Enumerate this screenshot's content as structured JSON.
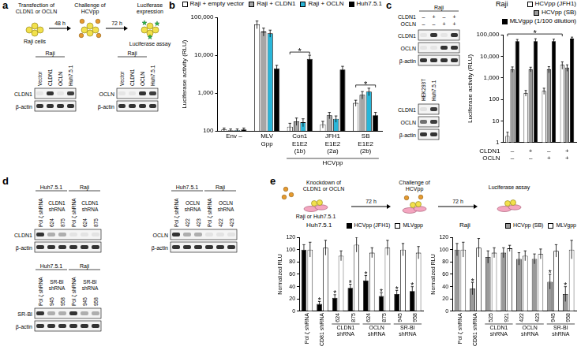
{
  "panel_letters": [
    "a",
    "b",
    "c",
    "d",
    "e"
  ],
  "scheme_a": {
    "transfection": "Transfection of CLDN1 or OCLN",
    "cells": "Raji cells",
    "time_1": "48 h",
    "challenge": "Challenge of HCVpp",
    "time_2": "72 h",
    "expression": "Luciferase expression",
    "assay": "Luciferase assay"
  },
  "blots_a": [
    {
      "header": "Raji",
      "lanes": [
        "Vector",
        "CLDN1",
        "OCLN",
        "Huh7.5.1"
      ],
      "rows": [
        "CLDN1",
        "β-actin"
      ]
    },
    {
      "header": "Raji",
      "lanes": [
        "Vector",
        "CLDN1",
        "OCLN",
        "Huh7.5.1"
      ],
      "rows": [
        "OCLN",
        "β-actin"
      ]
    }
  ],
  "blots_c": [
    {
      "header": "Raji",
      "conditions": [
        {
          "label": "CLDN1",
          "marks": [
            "–",
            "+",
            "–",
            "+"
          ]
        },
        {
          "label": "OCLN",
          "marks": [
            "–",
            "–",
            "+",
            "+"
          ]
        }
      ],
      "rows": [
        "CLDN1",
        "OCLN",
        "β-actin"
      ]
    },
    {
      "lanes": [
        "HEK293T",
        "Huh7.5.1"
      ],
      "rows": [
        "CLDN1",
        "OCLN",
        "β-actin"
      ]
    }
  ],
  "blots_d": [
    {
      "groups": [
        {
          "header": "Huh7.5.1",
          "control": "Pol ζ shRNA",
          "knockdown": "CLDN1 shRNA",
          "clones": [
            "624",
            "875"
          ]
        },
        {
          "header": "Raji",
          "control": "Pol ζ shRNA",
          "knockdown": "CLDN1 shRNA",
          "clones": [
            "624",
            "875"
          ]
        }
      ],
      "rows": [
        "CLDN1",
        "β-actin"
      ]
    },
    {
      "groups": [
        {
          "header": "Huh7.5.1",
          "control": "Pol ζ shRNA",
          "knockdown": "OCLN shRNA",
          "clones": [
            "422",
            "423"
          ]
        },
        {
          "header": "Raji",
          "control": "Pol ζ shRNA",
          "knockdown": "OCLN shRNA",
          "clones": [
            "422",
            "423"
          ]
        }
      ],
      "rows": [
        "OCLN",
        "β-actin"
      ]
    },
    {
      "groups": [
        {
          "header": "Huh7.5.1",
          "control": "Pol ζ shRNA",
          "knockdown": "SR-BI shRNA",
          "clones": [
            "945",
            "958"
          ]
        },
        {
          "header": "Raji",
          "control": "Pol ζ shRNA",
          "knockdown": "SR-BI shRNA",
          "clones": [
            "945",
            "958"
          ]
        }
      ],
      "rows": [
        "SR-BI",
        "β-actin"
      ]
    }
  ],
  "scheme_e": {
    "knockdown": "Knockdown of CLDN1 or OCLN",
    "cells": "Raji or Huh7.5.1",
    "time_1": "72 h",
    "challenge": "Challenge of HCVpp",
    "time_2": "72 h",
    "assay": "Luciferase assay"
  },
  "c_condition_rows": [
    "CLDN1",
    "OCLN"
  ],
  "chart_data": [
    {
      "type": "bar",
      "y_label": "Luciferase activity (RLU)",
      "categories": [
        "Env –",
        "MLV Gpp",
        "Con1 E1E2 (1b)",
        "JFH1 E1E2 (2a)",
        "SB E1E2 (2b)"
      ],
      "category_groups": [
        {
          "label": "HCVpp",
          "first": 2,
          "last": 4
        }
      ],
      "series": [
        {
          "name": "Raji + empty vector",
          "color": "#ffffff",
          "values": [
            110,
            65000,
            130,
            150,
            550
          ],
          "errors": [
            10,
            15000,
            30,
            30,
            100
          ]
        },
        {
          "name": "Raji + CLDN1",
          "color": "#a6a6a6",
          "values": [
            105,
            42000,
            180,
            260,
            900
          ],
          "errors": [
            8,
            10000,
            40,
            50,
            200
          ]
        },
        {
          "name": "Raji + OCLN",
          "color": "#29b6d9",
          "values": [
            105,
            38000,
            170,
            210,
            1100
          ],
          "errors": [
            8,
            8000,
            40,
            40,
            250
          ]
        },
        {
          "name": "Huh7.5.1",
          "color": "#000000",
          "values": [
            110,
            4500,
            8000,
            4200,
            260
          ],
          "errors": [
            10,
            900,
            2000,
            900,
            50
          ]
        }
      ],
      "log": "y",
      "ylim": [
        100,
        100000
      ],
      "yticks": [
        100,
        {
          "value": 1000,
          "label": "1,000"
        },
        {
          "value": 10000,
          "label": "10,000"
        },
        {
          "value": 100000,
          "label": "100,000"
        }
      ],
      "grid": false,
      "legend": "top",
      "annotations": [
        {
          "text": "*",
          "from": 2,
          "to": 2
        },
        {
          "text": "*",
          "from": 4,
          "to": 4
        }
      ]
    },
    {
      "type": "bar",
      "title": "Raji",
      "y_label": "Luciferase activity (RLU)",
      "categories": [
        "– –",
        "+ –",
        "– +",
        "+ +"
      ],
      "series": [
        {
          "name": "HCVpp (JFH1)",
          "color": "#ffffff",
          "values": [
            2,
            200,
            250,
            4000
          ],
          "errors": [
            1,
            60,
            80,
            1500
          ]
        },
        {
          "name": "HCVpp (SB)",
          "color": "#9a9a9a",
          "values": [
            2500,
            2500,
            2500,
            3000
          ],
          "errors": [
            700,
            600,
            800,
            1000
          ]
        },
        {
          "name": "MLVgpp (1/100 dilution)",
          "color": "#000000",
          "values": [
            50000,
            50000,
            50000,
            65000
          ],
          "errors": [
            10000,
            15000,
            12000,
            12000
          ]
        }
      ],
      "log": "y",
      "ylim": [
        1,
        100000
      ],
      "yticks": [
        1,
        10,
        100,
        {
          "value": 1000,
          "label": "1,000"
        },
        {
          "value": 10000,
          "label": "10,000"
        },
        {
          "value": 100000,
          "label": "100,000"
        }
      ],
      "grid": false,
      "legend": "top",
      "annotations": [
        {
          "text": "*",
          "series": "HCVpp (JFH1)",
          "from": 0,
          "to": 3
        }
      ]
    },
    {
      "type": "bar",
      "title": "Huh7.5.1",
      "y_label": "Normalized RLU",
      "categories": [
        "Pol ζ shRNA",
        "CD81 shRNA",
        "624",
        "875",
        "624",
        "875",
        "945",
        "958"
      ],
      "category_groups": [
        {
          "label": "CLDN1 shRNA",
          "first": 2,
          "last": 3
        },
        {
          "label": "OCLN shRNA",
          "first": 4,
          "last": 5
        },
        {
          "label": "SR-BI shRNA",
          "first": 6,
          "last": 7
        }
      ],
      "series": [
        {
          "name": "HCVpp (JFH1)",
          "color": "#000000",
          "values": [
            100,
            12,
            22,
            38,
            50,
            25,
            28,
            33
          ],
          "errors": [
            8,
            4,
            5,
            6,
            8,
            5,
            6,
            7
          ]
        },
        {
          "name": "MLVgpp",
          "color": "#ffffff",
          "values": [
            100,
            103,
            90,
            108,
            95,
            103,
            100,
            95
          ],
          "errors": [
            12,
            12,
            8,
            12,
            8,
            12,
            10,
            10
          ]
        }
      ],
      "ylim": [
        0,
        120
      ],
      "yticks": [
        0,
        20,
        40,
        60,
        80,
        100,
        120
      ],
      "grid": false,
      "legend": "top",
      "annotations": [
        {
          "text": "*",
          "series": "HCVpp (JFH1)",
          "from": 1,
          "to": 1
        },
        {
          "text": "*",
          "series": "HCVpp (JFH1)",
          "from": 2,
          "to": 2
        },
        {
          "text": "*",
          "series": "HCVpp (JFH1)",
          "from": 3,
          "to": 3
        },
        {
          "text": "*",
          "series": "HCVpp (JFH1)",
          "from": 4,
          "to": 4
        },
        {
          "text": "*",
          "series": "HCVpp (JFH1)",
          "from": 5,
          "to": 5
        },
        {
          "text": "*",
          "series": "HCVpp (JFH1)",
          "from": 6,
          "to": 6
        },
        {
          "text": "*",
          "series": "HCVpp (JFH1)",
          "from": 7,
          "to": 7
        }
      ]
    },
    {
      "type": "bar",
      "title": "Raji",
      "y_label": "Normalized RLU",
      "categories": [
        "Pol ζ shRNA",
        "CD81 shRNA",
        "525",
        "921",
        "422",
        "423",
        "945",
        "958"
      ],
      "category_groups": [
        {
          "label": "CLDN1 shRNA",
          "first": 2,
          "last": 3
        },
        {
          "label": "OCLN shRNA",
          "first": 4,
          "last": 5
        },
        {
          "label": "SR-BI shRNA",
          "first": 6,
          "last": 7
        }
      ],
      "series": [
        {
          "name": "HCVpp (SB)",
          "color": "#9a9a9a",
          "values": [
            100,
            37,
            88,
            95,
            85,
            85,
            48,
            28
          ],
          "errors": [
            10,
            10,
            10,
            8,
            10,
            8,
            12,
            12
          ]
        },
        {
          "name": "MLVgpp",
          "color": "#ffffff",
          "values": [
            100,
            103,
            95,
            102,
            90,
            93,
            98,
            100
          ],
          "errors": [
            12,
            15,
            8,
            5,
            8,
            8,
            10,
            15
          ]
        }
      ],
      "ylim": [
        0,
        120
      ],
      "yticks": [
        0,
        20,
        40,
        60,
        80,
        100,
        120
      ],
      "grid": false,
      "legend": "top",
      "annotations": [
        {
          "text": "*",
          "series": "HCVpp (SB)",
          "from": 1,
          "to": 1
        },
        {
          "text": "*",
          "series": "HCVpp (SB)",
          "from": 6,
          "to": 6
        },
        {
          "text": "*",
          "series": "HCVpp (SB)",
          "from": 7,
          "to": 7
        }
      ]
    }
  ]
}
